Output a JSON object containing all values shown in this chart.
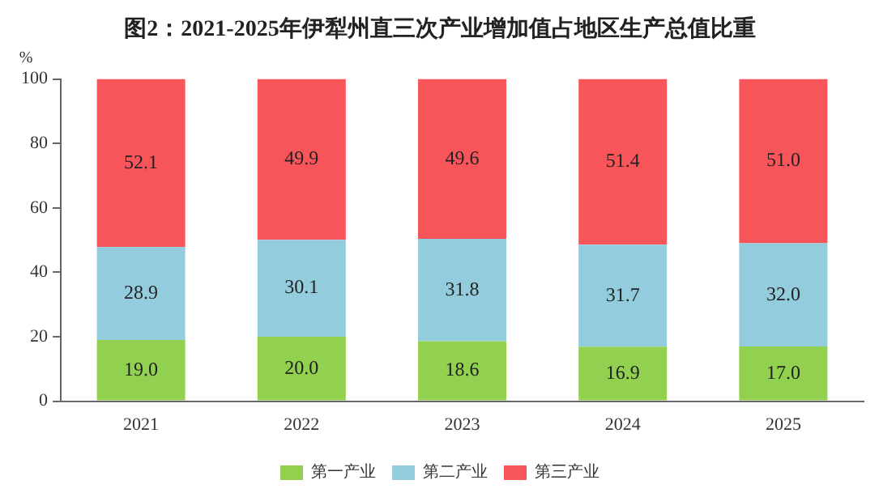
{
  "chart_data": {
    "type": "bar",
    "title": "图2：2021-2025年伊犁州直三次产业增加值占地区生产总值比重",
    "ylabel": "%",
    "categories": [
      "2021",
      "2022",
      "2023",
      "2024",
      "2025"
    ],
    "series": [
      {
        "name": "第一产业",
        "color": "#92d050",
        "values": [
          19.0,
          20.0,
          18.6,
          16.9,
          17.0
        ],
        "value_labels": [
          "19.0",
          "20.0",
          "18.6",
          "16.9",
          "17.0"
        ]
      },
      {
        "name": "第二产业",
        "color": "#93cddd",
        "values": [
          28.9,
          30.1,
          31.8,
          31.7,
          32.0
        ],
        "value_labels": [
          "28.9",
          "30.1",
          "31.8",
          "31.7",
          "32.0"
        ]
      },
      {
        "name": "第三产业",
        "color": "#f8555b",
        "values": [
          52.1,
          49.9,
          49.6,
          51.4,
          51.0
        ],
        "value_labels": [
          "52.1",
          "49.9",
          "49.6",
          "51.4",
          "51.0"
        ]
      }
    ],
    "stacked": true,
    "ylim": [
      0,
      100
    ],
    "yticks": [
      0,
      20,
      40,
      60,
      80,
      100
    ],
    "grid": false,
    "legend": "bottom"
  }
}
